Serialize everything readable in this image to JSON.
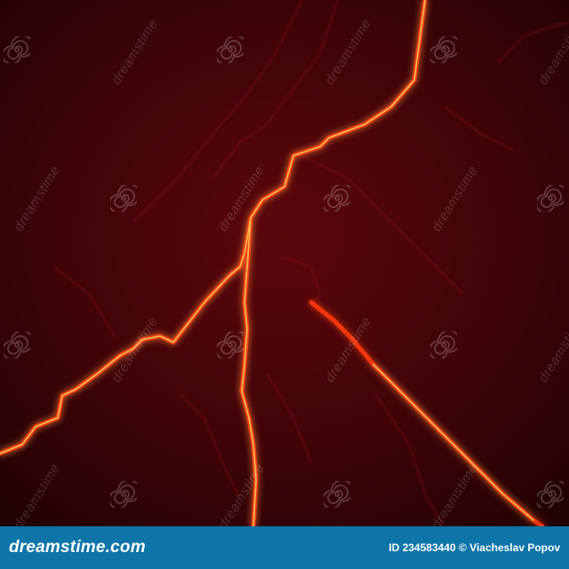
{
  "photo": {
    "icon": "lightning-crack-photo",
    "background_color": "#3a0408",
    "glow_color": "#ff3a12",
    "core_color": "#ffb347"
  },
  "watermark": {
    "text": "dreamstime",
    "icon": "dreamstime-spiral-icon"
  },
  "footer": {
    "logo": "dreamstime.com",
    "credit": "ID 234583440 © Viacheslav Popov",
    "background_color": "#0d75a8"
  }
}
